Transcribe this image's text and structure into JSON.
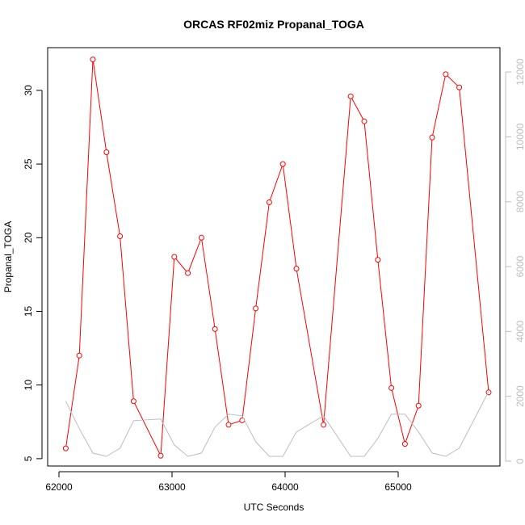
{
  "chart_data": {
    "type": "line",
    "title": "ORCAS RF02miz Propanal_TOGA",
    "xlabel": "UTC Seconds",
    "ylabel": "Propanal_TOGA",
    "xlim": [
      61900,
      65900
    ],
    "ylim": [
      4.5,
      32.9
    ],
    "y2lim": [
      -150,
      12750
    ],
    "x_ticks": [
      62000,
      63000,
      64000,
      65000
    ],
    "y_ticks": [
      5,
      10,
      15,
      20,
      25,
      30
    ],
    "y2_ticks": [
      0,
      2000,
      4000,
      6000,
      8000,
      10000,
      12000
    ],
    "grid": false,
    "legend": "none",
    "series": [
      {
        "color": "#ff0000",
        "marker": "circle",
        "x": [
          62060,
          62180,
          62300,
          62420,
          62540,
          62660,
          62900,
          63020,
          63140,
          63260,
          63380,
          63500,
          63620,
          63740,
          63860,
          63980,
          64100,
          64340,
          64580,
          64700,
          64820,
          64940,
          65060,
          65180,
          65300,
          65420,
          65540,
          65800
        ],
        "y": [
          5.7,
          12.0,
          32.1,
          25.8,
          20.1,
          8.9,
          5.2,
          18.7,
          17.6,
          20.0,
          13.8,
          7.3,
          7.6,
          15.2,
          22.4,
          25.0,
          17.9,
          7.3,
          29.6,
          27.9,
          18.5,
          9.8,
          6.0,
          8.6,
          26.8,
          31.1,
          30.2,
          9.5
        ]
      },
      {
        "color": "#bdbdbd",
        "axis": "right",
        "marker": "none",
        "x": [
          62060,
          62180,
          62300,
          62420,
          62540,
          62660,
          62900,
          63020,
          63140,
          63260,
          63380,
          63500,
          63620,
          63740,
          63860,
          63980,
          64100,
          64340,
          64580,
          64700,
          64820,
          64940,
          65060,
          65180,
          65300,
          65420,
          65540,
          65800
        ],
        "y": [
          1850,
          1000,
          250,
          150,
          400,
          1250,
          1300,
          500,
          150,
          250,
          1050,
          1450,
          1400,
          600,
          150,
          150,
          900,
          1400,
          150,
          150,
          700,
          1450,
          1450,
          900,
          250,
          150,
          400,
          2150
        ]
      }
    ]
  }
}
